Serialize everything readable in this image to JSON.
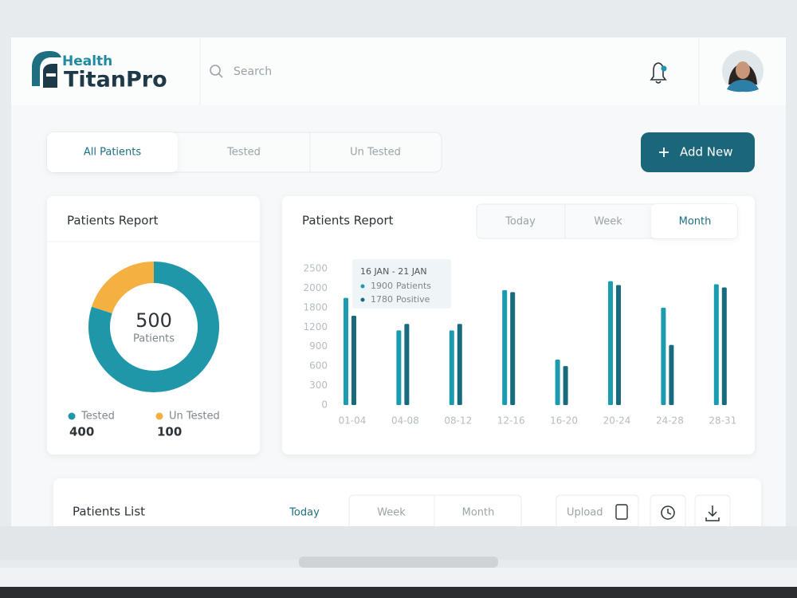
{
  "header": {
    "brand_top": "Health",
    "brand_main": "TitanPro",
    "search_placeholder": "Search"
  },
  "tabs": [
    "All Patients",
    "Tested",
    "Un Tested"
  ],
  "add_button": "Add New",
  "chart_data": [
    {
      "type": "donut",
      "title": "Patients Report",
      "categories": [
        "Tested",
        "Un Tested"
      ],
      "values": [
        400,
        100
      ],
      "colors": [
        "#1f97a8",
        "#f5b042"
      ],
      "center_value": 500,
      "center_label": "Patients"
    },
    {
      "type": "bar",
      "title": "Patients Report",
      "periods": [
        "Today",
        "Week",
        "Month"
      ],
      "categories": [
        "01-04",
        "04-08",
        "08-12",
        "12-16",
        "16-20",
        "20-24",
        "24-28",
        "28-31"
      ],
      "series": [
        {
          "color": "#1a9bb0",
          "values": [
            1900,
            1150,
            1150,
            1980,
            700,
            2180,
            1800,
            2100
          ]
        },
        {
          "color": "#176b7c",
          "values": [
            1550,
            1300,
            1300,
            1960,
            600,
            2080,
            925,
            2020
          ]
        }
      ],
      "ylim": [
        0,
        2500
      ],
      "yticks": [
        0,
        300,
        600,
        900,
        1200,
        1800,
        2000,
        2500
      ],
      "tooltip": {
        "title": "16 JAN - 21 JAN",
        "items": [
          {
            "value": 1900,
            "label": "Patients"
          },
          {
            "value": 1780,
            "label": "Positive"
          }
        ]
      }
    }
  ],
  "patients_list": {
    "title": "Patients List",
    "periods": [
      "Today",
      "Week",
      "Month"
    ],
    "upload": "Upload"
  }
}
